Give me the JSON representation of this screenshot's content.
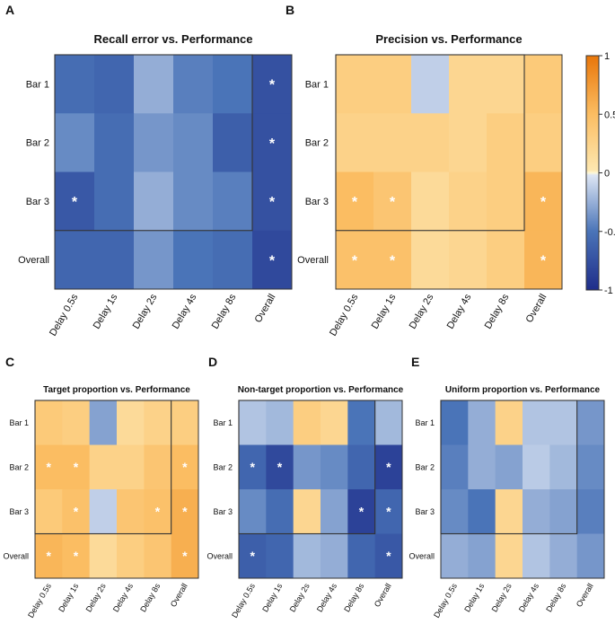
{
  "colors": {
    "neg_deep": "#1f2d8a",
    "neg_mid": "#4a74b8",
    "neutral": "#fff8d6",
    "pos_mid": "#fbbd62",
    "pos_deep": "#e8760a",
    "frame": "#333333",
    "star": "#ffffff"
  },
  "colorbar": {
    "ticks": [
      {
        "value": 1,
        "label": "1"
      },
      {
        "value": 0.5,
        "label": "0.5"
      },
      {
        "value": 0,
        "label": "0"
      },
      {
        "value": -0.5,
        "label": "-0.5"
      },
      {
        "value": -1,
        "label": "-1"
      }
    ]
  },
  "chart_data": [
    {
      "type": "heatmap",
      "panel": "A",
      "title": "Recall error vs. Performance",
      "rows": [
        "Bar 1",
        "Bar 2",
        "Bar 3",
        "Overall"
      ],
      "cols": [
        "Delay 0.5s",
        "Delay 1s",
        "Delay 2s",
        "Delay 4s",
        "Delay 8s",
        "Overall"
      ],
      "values": [
        [
          -0.55,
          -0.6,
          -0.25,
          -0.45,
          -0.5,
          -0.75
        ],
        [
          -0.4,
          -0.55,
          -0.35,
          -0.4,
          -0.65,
          -0.75
        ],
        [
          -0.7,
          -0.55,
          -0.25,
          -0.4,
          -0.45,
          -0.75
        ],
        [
          -0.6,
          -0.6,
          -0.35,
          -0.5,
          -0.55,
          -0.8
        ]
      ],
      "stars": [
        [
          0,
          5
        ],
        [
          1,
          5
        ],
        [
          2,
          0
        ],
        [
          2,
          5
        ],
        [
          3,
          5
        ]
      ],
      "clim": [
        -1,
        1
      ]
    },
    {
      "type": "heatmap",
      "panel": "B",
      "title": "Precision vs. Performance",
      "rows": [
        "Bar 1",
        "Bar 2",
        "Bar 3",
        "Overall"
      ],
      "cols": [
        "Delay 0.5s",
        "Delay 1s",
        "Delay 2s",
        "Delay 4s",
        "Delay 8s",
        "Overall"
      ],
      "values": [
        [
          0.3,
          0.3,
          -0.1,
          0.2,
          0.2,
          0.35
        ],
        [
          0.25,
          0.25,
          0.25,
          0.2,
          0.3,
          0.3
        ],
        [
          0.5,
          0.4,
          0.15,
          0.25,
          0.3,
          0.55
        ],
        [
          0.45,
          0.45,
          0.15,
          0.2,
          0.3,
          0.55
        ]
      ],
      "stars": [
        [
          2,
          0
        ],
        [
          2,
          1
        ],
        [
          2,
          5
        ],
        [
          3,
          0
        ],
        [
          3,
          1
        ],
        [
          3,
          5
        ]
      ],
      "clim": [
        -1,
        1
      ]
    },
    {
      "type": "heatmap",
      "panel": "C",
      "title": "Target proportion vs. Performance",
      "rows": [
        "Bar 1",
        "Bar 2",
        "Bar 3",
        "Overall"
      ],
      "cols": [
        "Delay 0.5s",
        "Delay 1s",
        "Delay 2s",
        "Delay 4s",
        "Delay 8s",
        "Overall"
      ],
      "values": [
        [
          0.35,
          0.3,
          -0.3,
          0.15,
          0.25,
          0.3
        ],
        [
          0.5,
          0.5,
          0.25,
          0.25,
          0.4,
          0.5
        ],
        [
          0.35,
          0.45,
          -0.1,
          0.4,
          0.45,
          0.6
        ],
        [
          0.55,
          0.5,
          0.15,
          0.3,
          0.4,
          0.6
        ]
      ],
      "stars": [
        [
          1,
          0
        ],
        [
          1,
          1
        ],
        [
          1,
          5
        ],
        [
          2,
          1
        ],
        [
          2,
          4
        ],
        [
          2,
          5
        ],
        [
          3,
          0
        ],
        [
          3,
          1
        ],
        [
          3,
          5
        ]
      ],
      "clim": [
        -1,
        1
      ]
    },
    {
      "type": "heatmap",
      "panel": "D",
      "title": "Non-target proportion vs. Performance",
      "rows": [
        "Bar 1",
        "Bar 2",
        "Bar 3",
        "Overall"
      ],
      "cols": [
        "Delay 0.5s",
        "Delay 1s",
        "Delay 2s",
        "Delay 4s",
        "Delay 8s",
        "Overall"
      ],
      "values": [
        [
          -0.15,
          -0.2,
          0.3,
          0.2,
          -0.5,
          -0.2
        ],
        [
          -0.6,
          -0.8,
          -0.35,
          -0.4,
          -0.6,
          -0.85
        ],
        [
          -0.4,
          -0.55,
          0.2,
          -0.3,
          -0.85,
          -0.6
        ],
        [
          -0.65,
          -0.6,
          -0.2,
          -0.25,
          -0.6,
          -0.7
        ]
      ],
      "stars": [
        [
          1,
          0
        ],
        [
          1,
          1
        ],
        [
          1,
          5
        ],
        [
          2,
          4
        ],
        [
          2,
          5
        ],
        [
          3,
          0
        ],
        [
          3,
          5
        ]
      ],
      "clim": [
        -1,
        1
      ]
    },
    {
      "type": "heatmap",
      "panel": "E",
      "title": "Uniform proportion vs. Performance",
      "rows": [
        "Bar 1",
        "Bar 2",
        "Bar 3",
        "Overall"
      ],
      "cols": [
        "Delay 0.5s",
        "Delay 1s",
        "Delay 2s",
        "Delay 4s",
        "Delay 8s",
        "Overall"
      ],
      "values": [
        [
          -0.5,
          -0.25,
          0.25,
          -0.15,
          -0.15,
          -0.35
        ],
        [
          -0.45,
          -0.25,
          -0.3,
          -0.12,
          -0.2,
          -0.4
        ],
        [
          -0.4,
          -0.5,
          0.2,
          -0.25,
          -0.3,
          -0.45
        ],
        [
          -0.25,
          -0.3,
          0.2,
          -0.15,
          -0.25,
          -0.35
        ]
      ],
      "stars": [],
      "clim": [
        -1,
        1
      ]
    }
  ]
}
